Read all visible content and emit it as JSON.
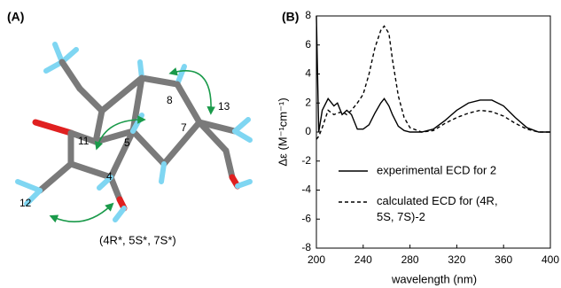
{
  "panel_a": {
    "label": "(A)",
    "atom_labels": [
      "11",
      "5",
      "4",
      "7",
      "8",
      "13",
      "12"
    ],
    "configuration": "(4R*, 5S*, 7S*)"
  },
  "chart_data": {
    "type": "line",
    "panel_label": "(B)",
    "x_label": "wavelength (nm)",
    "y_label": "Δε (M⁻¹cm⁻¹)",
    "x": [
      200,
      202,
      205,
      210,
      215,
      218,
      222,
      226,
      230,
      235,
      240,
      245,
      250,
      255,
      258,
      262,
      265,
      270,
      275,
      280,
      290,
      300,
      310,
      320,
      330,
      340,
      350,
      360,
      370,
      380,
      390,
      400
    ],
    "series": [
      {
        "name": "experimental ECD for 2",
        "color": "#000000",
        "dash": "none",
        "values": [
          8,
          0,
          1.5,
          2.3,
          1.8,
          2.0,
          1.2,
          1.5,
          1.2,
          0.2,
          0.2,
          0.5,
          1.3,
          2.0,
          2.3,
          1.8,
          1.2,
          0.4,
          0.1,
          0,
          0,
          0.2,
          0.8,
          1.5,
          2.0,
          2.2,
          2.2,
          1.8,
          1.0,
          0.3,
          0,
          0
        ]
      },
      {
        "name": "calculated ECD for (4R, 5S, 7S)-2",
        "color": "#000000",
        "dash": "4,3",
        "values": [
          -0.5,
          -0.3,
          0.3,
          1.5,
          1.2,
          1.3,
          1.4,
          1.2,
          1.5,
          2.0,
          2.6,
          4.0,
          5.8,
          7.0,
          7.3,
          6.8,
          5.0,
          2.5,
          1.0,
          0.3,
          0,
          0.1,
          0.6,
          1.0,
          1.3,
          1.5,
          1.4,
          1.1,
          0.6,
          0.2,
          0,
          0
        ]
      }
    ],
    "xlim": [
      200,
      400
    ],
    "xticks": [
      200,
      240,
      280,
      320,
      360,
      400
    ],
    "ylim": [
      -8,
      8
    ],
    "yticks": [
      -8,
      -6,
      -4,
      -2,
      0,
      2,
      4,
      6,
      8
    ]
  }
}
